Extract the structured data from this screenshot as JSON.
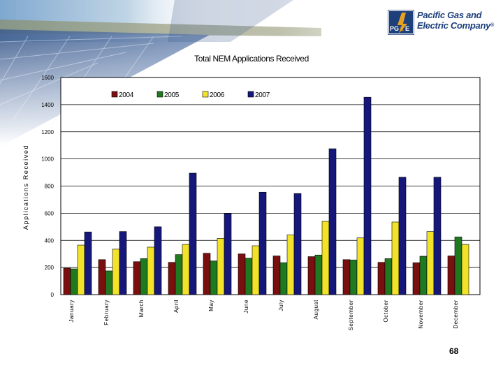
{
  "header": {
    "company_line1": "Pacific Gas and",
    "company_line2": "Electric Company",
    "registered_mark": "®",
    "logo_text_pg": "PG",
    "logo_text_amp": "&",
    "logo_text_e": "E"
  },
  "colors": {
    "2004": "#7a0f0f",
    "2005": "#1f7a1f",
    "2006": "#f2e32a",
    "2007": "#16177a",
    "brand_blue": "#1d3f7a",
    "brand_orange": "#e8a020"
  },
  "chart_data": {
    "type": "bar",
    "title": "Total NEM Applications Received",
    "xlabel": "",
    "ylabel": "Applications Received",
    "ylim": [
      0,
      1600
    ],
    "yticks": [
      0,
      200,
      400,
      600,
      800,
      1000,
      1200,
      1400,
      1600
    ],
    "grid": true,
    "legend_position": "top",
    "categories": [
      "January",
      "February",
      "March",
      "April",
      "May",
      "June",
      "July",
      "August",
      "September",
      "October",
      "November",
      "December"
    ],
    "series": [
      {
        "name": "2004",
        "values": [
          195,
          258,
          243,
          238,
          305,
          300,
          285,
          280,
          258,
          238,
          235,
          285
        ]
      },
      {
        "name": "2005",
        "values": [
          190,
          175,
          265,
          295,
          248,
          268,
          235,
          292,
          255,
          265,
          283,
          425
        ]
      },
      {
        "name": "2006",
        "values": [
          365,
          335,
          350,
          370,
          415,
          360,
          440,
          540,
          418,
          535,
          465,
          370
        ]
      },
      {
        "name": "2007",
        "values": [
          462,
          465,
          500,
          895,
          598,
          755,
          745,
          1075,
          1455,
          865,
          865,
          null
        ]
      }
    ]
  },
  "footer": {
    "page_number": "68"
  }
}
